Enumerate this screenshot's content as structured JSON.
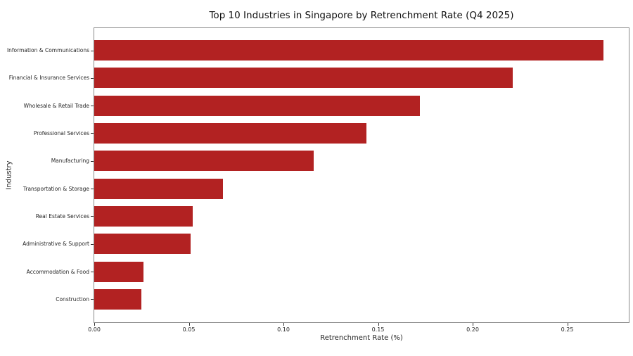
{
  "chart_data": {
    "type": "bar",
    "orientation": "horizontal",
    "title": "Top 10 Industries in Singapore by Retrenchment Rate (Q4 2025)",
    "xlabel": "Retrenchment Rate (%)",
    "ylabel": "Industry",
    "categories": [
      "Information & Communications",
      "Financial & Insurance Services",
      "Wholesale & Retail Trade",
      "Professional Services",
      "Manufacturing",
      "Transportation & Storage",
      "Real Estate Services",
      "Administrative & Support",
      "Accommodation & Food",
      "Construction"
    ],
    "values": [
      0.269,
      0.221,
      0.172,
      0.144,
      0.116,
      0.068,
      0.052,
      0.051,
      0.026,
      0.025
    ],
    "xlim": [
      0,
      0.2825
    ],
    "xticks": [
      0.0,
      0.05,
      0.1,
      0.15,
      0.2,
      0.25
    ],
    "xtick_labels": [
      "0.00",
      "0.05",
      "0.10",
      "0.15",
      "0.20",
      "0.25"
    ],
    "bar_color": "#b22222",
    "grid": false,
    "legend": null
  }
}
